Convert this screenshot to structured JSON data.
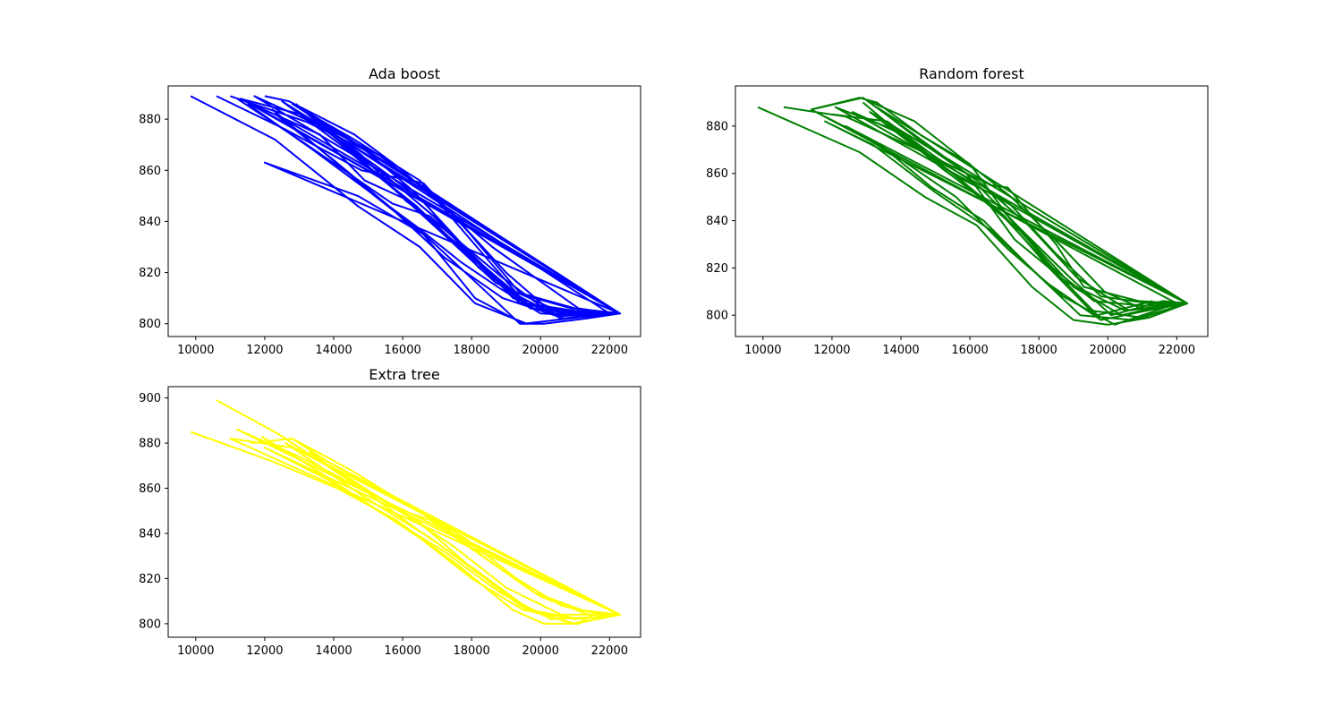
{
  "chart_data": [
    {
      "type": "line",
      "title": "Ada boost",
      "color": "#0000ff",
      "xlim": [
        9200,
        22900
      ],
      "ylim": [
        795,
        893
      ],
      "xticks": [
        10000,
        12000,
        14000,
        16000,
        18000,
        20000,
        22000
      ],
      "yticks": [
        800,
        820,
        840,
        860,
        880
      ],
      "grid": false,
      "series": [
        {
          "x": [
            9850,
            12300,
            14700,
            16500,
            18100,
            19600,
            21300,
            22300,
            12000,
            14700,
            16600,
            18100,
            19500,
            20800,
            22100
          ],
          "y": [
            889,
            872,
            846,
            830,
            808,
            800,
            803,
            804,
            863,
            850,
            835,
            810,
            800,
            802,
            804
          ]
        },
        {
          "x": [
            10600,
            12600,
            14800,
            16600,
            17900,
            19400,
            21000,
            22300,
            11300,
            13000,
            15300,
            16500,
            18600,
            21100,
            22100
          ],
          "y": [
            889,
            876,
            860,
            855,
            836,
            812,
            806,
            804,
            888,
            882,
            866,
            854,
            830,
            806,
            804
          ]
        },
        {
          "x": [
            11000,
            13200,
            14900,
            16300,
            17800,
            19200,
            20600,
            22300,
            11700,
            13500,
            15200,
            16600,
            18200,
            19800,
            22000
          ],
          "y": [
            889,
            879,
            868,
            852,
            830,
            810,
            803,
            804,
            889,
            878,
            862,
            848,
            822,
            806,
            804
          ]
        },
        {
          "x": [
            12000,
            12700,
            14600,
            15900,
            17500,
            19000,
            20200,
            21600,
            22300,
            12800,
            14600,
            16500,
            17900,
            19300,
            20900,
            22300
          ],
          "y": [
            889,
            887,
            874,
            861,
            842,
            820,
            806,
            803,
            804,
            886,
            872,
            856,
            834,
            812,
            806,
            804
          ]
        },
        {
          "x": [
            11200,
            13000,
            14300,
            15700,
            16800,
            18100,
            19400,
            21000,
            22300,
            11600,
            13600,
            14900,
            16200,
            17800,
            19600,
            21500,
            22300
          ],
          "y": [
            888,
            872,
            860,
            847,
            842,
            826,
            808,
            805,
            804,
            886,
            874,
            856,
            848,
            828,
            808,
            804,
            804
          ]
        },
        {
          "x": [
            12200,
            13800,
            15200,
            16400,
            17700,
            18800,
            20000,
            21400,
            22300,
            12500,
            14200,
            15800,
            17100,
            18700,
            20500,
            22300
          ],
          "y": [
            884,
            866,
            850,
            838,
            824,
            814,
            804,
            803,
            804,
            887,
            870,
            852,
            836,
            816,
            805,
            804
          ]
        },
        {
          "x": [
            12900,
            14100,
            15500,
            16900,
            18300,
            19700,
            21200,
            22300,
            13100,
            14800,
            16100,
            17300,
            18900,
            20300,
            22000
          ],
          "y": [
            886,
            872,
            858,
            842,
            822,
            806,
            804,
            804,
            884,
            866,
            848,
            836,
            818,
            804,
            804
          ]
        },
        {
          "x": [
            11500,
            13400,
            15000,
            16700,
            18300,
            19400,
            20100,
            21300,
            22300,
            12300,
            14000,
            15600,
            17200,
            18900,
            20700,
            22300
          ],
          "y": [
            886,
            868,
            852,
            834,
            814,
            800,
            800,
            802,
            804,
            882,
            864,
            846,
            826,
            810,
            802,
            804
          ]
        },
        {
          "x": [
            13500,
            14900,
            16400,
            17800,
            19200,
            20600,
            22000,
            13800,
            15300,
            16800,
            18400,
            19800,
            21400
          ],
          "y": [
            880,
            862,
            846,
            828,
            812,
            802,
            804,
            876,
            858,
            840,
            822,
            806,
            803
          ]
        }
      ]
    },
    {
      "type": "line",
      "title": "Random forest",
      "color": "#008000",
      "xlim": [
        9200,
        22900
      ],
      "ylim": [
        791,
        897
      ],
      "xticks": [
        10000,
        12000,
        14000,
        16000,
        18000,
        20000,
        22000
      ],
      "yticks": [
        800,
        820,
        840,
        860,
        880
      ],
      "grid": false,
      "series": [
        {
          "x": [
            9850,
            12800,
            14700,
            16200,
            17800,
            19000,
            20000,
            21200,
            22300,
            11800,
            13200,
            15000,
            16600,
            18200,
            19800,
            21500,
            22300
          ],
          "y": [
            888,
            869,
            850,
            838,
            812,
            798,
            796,
            799,
            805,
            882,
            872,
            852,
            836,
            814,
            798,
            803,
            805
          ]
        },
        {
          "x": [
            10600,
            12400,
            14500,
            16600,
            17100,
            18500,
            19300,
            20900,
            22000,
            11400,
            12900,
            14800,
            15900,
            17300,
            18800,
            20500,
            22300
          ],
          "y": [
            888,
            884,
            870,
            855,
            854,
            830,
            812,
            806,
            805,
            887,
            892,
            872,
            860,
            832,
            814,
            802,
            805
          ]
        },
        {
          "x": [
            11400,
            12800,
            13300,
            14600,
            16000,
            17200,
            18400,
            19600,
            21100,
            22300,
            12100,
            13900,
            15200,
            16700,
            18100,
            19700,
            21300
          ],
          "y": [
            887,
            892,
            890,
            876,
            864,
            840,
            820,
            806,
            804,
            805,
            888,
            878,
            862,
            846,
            824,
            800,
            806
          ]
        },
        {
          "x": [
            12000,
            13600,
            14900,
            16300,
            17500,
            18900,
            20100,
            21600,
            22300,
            12600,
            14100,
            15500,
            17000,
            18300,
            19500,
            21000,
            22300
          ],
          "y": [
            885,
            882,
            868,
            854,
            836,
            816,
            800,
            806,
            805,
            886,
            876,
            860,
            842,
            820,
            802,
            799,
            805
          ]
        },
        {
          "x": [
            12900,
            14200,
            15700,
            17100,
            18500,
            19800,
            21200,
            22300,
            13100,
            14700,
            16100,
            17600,
            19000,
            20400,
            21900
          ],
          "y": [
            890,
            874,
            858,
            848,
            826,
            808,
            805,
            805,
            886,
            868,
            852,
            834,
            812,
            800,
            805
          ]
        },
        {
          "x": [
            11800,
            13400,
            14900,
            16400,
            17900,
            19200,
            20700,
            22300,
            12400,
            14000,
            15600,
            17100,
            18700,
            20200,
            21800
          ],
          "y": [
            884,
            872,
            854,
            840,
            818,
            800,
            798,
            805,
            880,
            866,
            850,
            828,
            808,
            796,
            804
          ]
        },
        {
          "x": [
            13000,
            14400,
            15800,
            17200,
            18600,
            19900,
            21100,
            22300,
            13300,
            14900,
            16300,
            17700,
            19100,
            20600,
            22100
          ],
          "y": [
            891,
            882,
            866,
            850,
            830,
            810,
            802,
            805,
            888,
            870,
            856,
            838,
            816,
            802,
            805
          ]
        }
      ]
    },
    {
      "type": "line",
      "title": "Extra tree",
      "color": "#ffff00",
      "xlim": [
        9200,
        22900
      ],
      "ylim": [
        794,
        905
      ],
      "xticks": [
        10000,
        12000,
        14000,
        16000,
        18000,
        20000,
        22000
      ],
      "yticks": [
        800,
        820,
        840,
        860,
        880,
        900
      ],
      "grid": false,
      "series": [
        {
          "x": [
            9850,
            12200,
            14100,
            15800,
            17600,
            19200,
            20100,
            21100,
            21500,
            22300,
            11000,
            12800,
            14900,
            16800,
            18400,
            19600,
            21000,
            22300
          ],
          "y": [
            885,
            872,
            860,
            846,
            826,
            806,
            800,
            800,
            804,
            804,
            882,
            878,
            856,
            838,
            820,
            806,
            800,
            804
          ]
        },
        {
          "x": [
            10600,
            12400,
            14200,
            16000,
            16800,
            18300,
            19800,
            21200,
            22300,
            11200,
            13000,
            14800,
            16400,
            17900,
            19400,
            20900,
            22300
          ],
          "y": [
            899,
            884,
            866,
            850,
            846,
            830,
            814,
            806,
            804,
            886,
            874,
            860,
            846,
            826,
            808,
            800,
            804
          ]
        },
        {
          "x": [
            11600,
            12800,
            14500,
            16200,
            17800,
            19300,
            20600,
            21800,
            22300,
            12000,
            13800,
            15500,
            17200,
            18800,
            20300,
            21700,
            22300
          ],
          "y": [
            880,
            882,
            868,
            852,
            838,
            820,
            808,
            804,
            804,
            878,
            864,
            848,
            832,
            814,
            802,
            803,
            804
          ]
        },
        {
          "x": [
            11900,
            13300,
            14900,
            16500,
            18000,
            19500,
            21000,
            22300,
            12600,
            14300,
            15900,
            17500,
            19000,
            20600,
            22100
          ],
          "y": [
            883,
            870,
            854,
            838,
            820,
            806,
            802,
            804,
            880,
            866,
            850,
            834,
            816,
            804,
            804
          ]
        },
        {
          "x": [
            12800,
            13800,
            15200,
            16900,
            18500,
            20000,
            21400,
            22300,
            13300,
            14800,
            16400,
            18100,
            19700,
            21200
          ],
          "y": [
            882,
            872,
            860,
            846,
            828,
            812,
            804,
            804,
            876,
            860,
            842,
            824,
            806,
            802
          ]
        }
      ]
    }
  ]
}
